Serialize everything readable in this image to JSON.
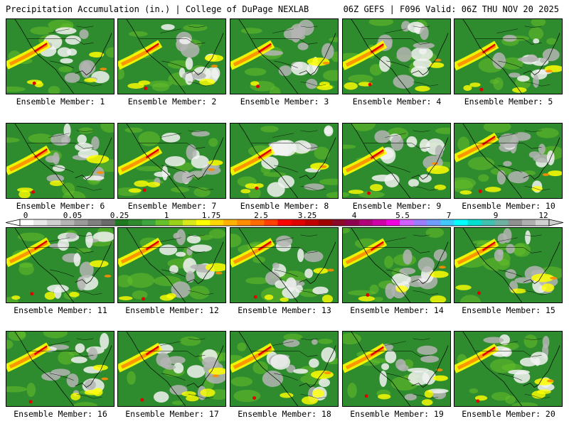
{
  "header": {
    "left": "Precipitation Accumulation (in.) | College of DuPage NEXLAB",
    "right": "06Z GEFS | F096 Valid: 06Z THU NOV 20 2025"
  },
  "members": [
    {
      "label": "Ensemble Member: 1"
    },
    {
      "label": "Ensemble Member: 2"
    },
    {
      "label": "Ensemble Member: 3"
    },
    {
      "label": "Ensemble Member: 4"
    },
    {
      "label": "Ensemble Member: 5"
    },
    {
      "label": "Ensemble Member: 6"
    },
    {
      "label": "Ensemble Member: 7"
    },
    {
      "label": "Ensemble Member: 8"
    },
    {
      "label": "Ensemble Member: 9"
    },
    {
      "label": "Ensemble Member: 10"
    },
    {
      "label": "Ensemble Member: 11"
    },
    {
      "label": "Ensemble Member: 12"
    },
    {
      "label": "Ensemble Member: 13"
    },
    {
      "label": "Ensemble Member: 14"
    },
    {
      "label": "Ensemble Member: 15"
    },
    {
      "label": "Ensemble Member: 16"
    },
    {
      "label": "Ensemble Member: 17"
    },
    {
      "label": "Ensemble Member: 18"
    },
    {
      "label": "Ensemble Member: 19"
    },
    {
      "label": "Ensemble Member: 20"
    }
  ],
  "colorbar": {
    "ticks": [
      "0",
      "0.05",
      "0.25",
      "1",
      "1.75",
      "2.5",
      "3.25",
      "4",
      "5.5",
      "7",
      "9",
      "12"
    ],
    "colors": [
      "#ffffff",
      "#e8e8e8",
      "#d0d0d0",
      "#b4b4b4",
      "#9a9a9a",
      "#808080",
      "#6a6a6a",
      "#1f7a1f",
      "#2e8b2e",
      "#3fa63f",
      "#66c02a",
      "#9ad21a",
      "#d8e81a",
      "#ffff00",
      "#ffd700",
      "#ffb000",
      "#ff8c00",
      "#ff6a00",
      "#ff4000",
      "#ff0000",
      "#e00000",
      "#c00000",
      "#a00000",
      "#8b0a2a",
      "#900050",
      "#b0007a",
      "#d000a8",
      "#f000e0",
      "#d060ff",
      "#9b7cff",
      "#6f9cff",
      "#40c8ff",
      "#00ffff",
      "#00e0d0",
      "#40c0b0",
      "#70b0a0",
      "#909090",
      "#b0b0b0",
      "#d0d0d0"
    ]
  },
  "palette": {
    "green": "#2e8b2e",
    "dark_green": "#1f7a1f",
    "light_green": "#66c02a",
    "yellow": "#ffff00",
    "orange": "#ff8c00",
    "red": "#e00000",
    "gray": "#b4b4b4",
    "white": "#f2f2f2"
  }
}
